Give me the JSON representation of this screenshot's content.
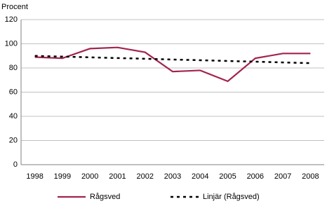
{
  "chart_data": {
    "type": "line",
    "y_label": "Procent",
    "categories": [
      "1998",
      "1999",
      "2000",
      "2001",
      "2002",
      "2003",
      "2004",
      "2005",
      "2006",
      "2007",
      "2008"
    ],
    "series": [
      {
        "name": "Rågsved",
        "color": "#a3234f",
        "dash": false,
        "values": [
          89,
          88,
          96,
          97,
          93,
          77,
          78,
          69,
          88,
          92,
          92
        ]
      },
      {
        "name": "Linjär (Rågsved)",
        "color": "#000000",
        "dash": true,
        "values": [
          90,
          89.4,
          88.8,
          88.2,
          87.6,
          87,
          86.4,
          85.8,
          85.2,
          84.6,
          84
        ]
      }
    ],
    "ylim": [
      0,
      120
    ],
    "yticks": [
      0,
      20,
      40,
      60,
      80,
      100,
      120
    ],
    "grid": true
  }
}
